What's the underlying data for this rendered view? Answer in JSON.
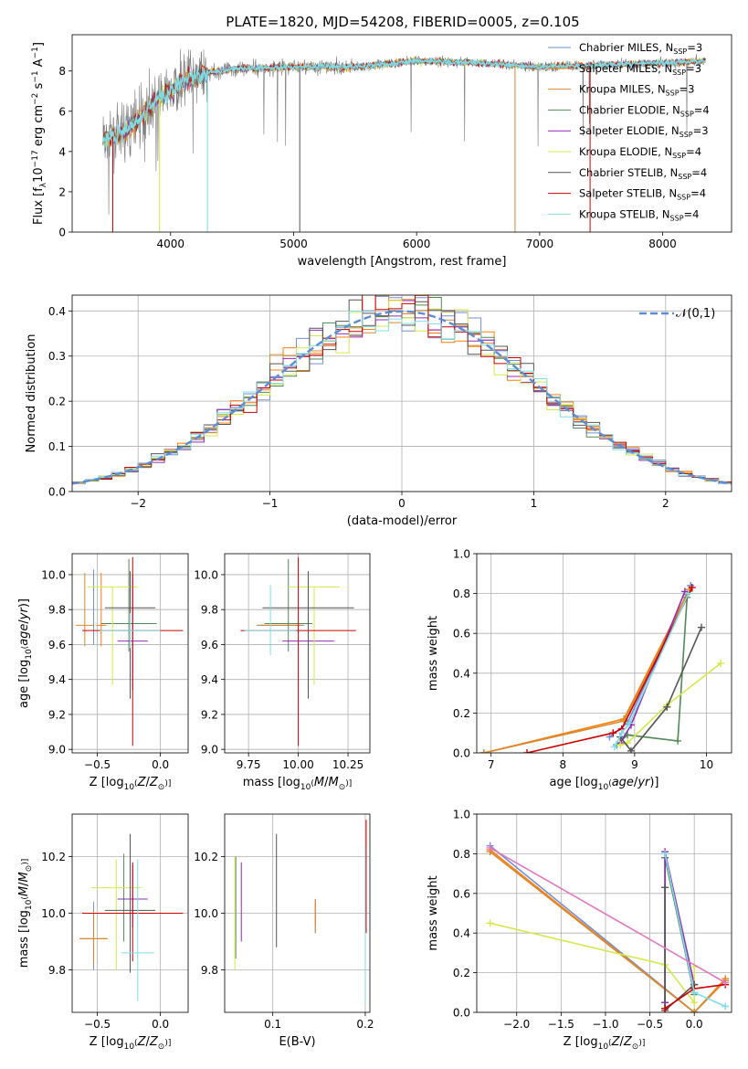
{
  "title": "PLATE=1820, MJD=54208, FIBERID=0005, z=0.105",
  "colors": {
    "Chabrier MILES": "#6f8fd6",
    "Salpeter MILES": "#ff7f0e",
    "Kroupa MILES": "#d6892f",
    "Chabrier ELODIE": "#4f8a55",
    "Salpeter ELODIE": "#9428b8",
    "Kroupa ELODIE": "#d6e84a",
    "Chabrier STELIB": "#555555",
    "Salpeter STELIB": "#cc0000",
    "Kroupa STELIB": "#7fdde8",
    "gauss": "#5b8dd6"
  },
  "chart_data": [
    {
      "type": "line",
      "name": "spectrum",
      "xlabel": "wavelength [Angstrom, rest frame]",
      "ylabel": "Flux [f_λ 10^-17 erg cm^-2 s^-1 A^-1]",
      "xlim": [
        3200,
        8560
      ],
      "ylim": [
        0,
        9.8
      ],
      "xticks": [
        4000,
        5000,
        6000,
        7000,
        8000
      ],
      "yticks": [
        0,
        2,
        4,
        6,
        8
      ],
      "observed_x_range": [
        3450,
        8350
      ],
      "legend_loc": "right",
      "legend": [
        {
          "label": "Chabrier MILES, N_SSP=3",
          "color": "#6f8fd6"
        },
        {
          "label": "Salpeter MILES, N_SSP=3",
          "color": "#ff7f0e"
        },
        {
          "label": "Kroupa MILES, N_SSP=3",
          "color": "#d6892f"
        },
        {
          "label": "Chabrier ELODIE, N_SSP=4",
          "color": "#4f8a55"
        },
        {
          "label": "Salpeter ELODIE, N_SSP=3",
          "color": "#9428b8"
        },
        {
          "label": "Kroupa ELODIE, N_SSP=4",
          "color": "#d6e84a"
        },
        {
          "label": "Chabrier STELIB, N_SSP=4",
          "color": "#555555"
        },
        {
          "label": "Salpeter STELIB, N_SSP=4",
          "color": "#cc0000"
        },
        {
          "label": "Kroupa STELIB, N_SSP=4",
          "color": "#7fdde8"
        }
      ],
      "continuum": [
        [
          3450,
          4.6
        ],
        [
          3600,
          4.9
        ],
        [
          3700,
          5.3
        ],
        [
          3800,
          6.0
        ],
        [
          3900,
          6.6
        ],
        [
          4000,
          7.0
        ],
        [
          4100,
          7.5
        ],
        [
          4300,
          7.9
        ],
        [
          4500,
          8.1
        ],
        [
          5000,
          8.2
        ],
        [
          5500,
          8.2
        ],
        [
          6000,
          8.5
        ],
        [
          6500,
          8.4
        ],
        [
          7000,
          8.2
        ],
        [
          7500,
          8.3
        ],
        [
          8000,
          8.4
        ],
        [
          8350,
          8.5
        ]
      ],
      "absorption_lines": [
        {
          "x": 3530,
          "depth": 4.8,
          "color": "#cc0000"
        },
        {
          "x": 3910,
          "depth": 6.2,
          "color": "#d6e84a"
        },
        {
          "x": 4300,
          "depth": 8.0,
          "color": "#7fdde8"
        },
        {
          "x": 5050,
          "depth": 8.3,
          "color": "#555555"
        },
        {
          "x": 6800,
          "depth": 8.3,
          "color": "#d6892f"
        },
        {
          "x": 7410,
          "depth": 8.4,
          "color": "#cc0000"
        }
      ]
    },
    {
      "type": "histogram",
      "name": "residuals",
      "xlabel": "(data-model)/error",
      "ylabel": "Normed distribution",
      "xlim": [
        -2.5,
        2.5
      ],
      "ylim": [
        0,
        0.435
      ],
      "xticks": [
        -2,
        -1,
        0,
        1,
        2
      ],
      "yticks": [
        0.0,
        0.1,
        0.2,
        0.3,
        0.4
      ],
      "bin_width": 0.1,
      "grid": true,
      "legend_loc": "top-right",
      "legend_label": "𝒩(0,1)",
      "reference_curve": "normal pdf, mean 0, std 1"
    },
    {
      "type": "scatter",
      "name": "age-vs-Z",
      "xlabel": "Z [log10(Z/Z⊙)]",
      "ylabel": "age  [log10(age/yr)]",
      "xlim": [
        -0.7,
        0.22
      ],
      "ylim": [
        8.98,
        10.12
      ],
      "xticks": [
        -0.5,
        0.0
      ],
      "yticks": [
        9.0,
        9.2,
        9.4,
        9.6,
        9.8,
        10.0
      ],
      "grid": true,
      "points": [
        {
          "model": "Chabrier MILES",
          "x": -0.53,
          "xerr": 0.0,
          "y": 9.71,
          "yerr_lo": 0.11,
          "yerr_hi": 0.32
        },
        {
          "model": "Salpeter MILES",
          "x": -0.47,
          "xerr": 0.04,
          "y": 9.71,
          "yerr_lo": 0.12,
          "yerr_hi": 0.3
        },
        {
          "model": "Kroupa MILES",
          "x": -0.6,
          "xerr": 0.07,
          "y": 9.71,
          "yerr_lo": 0.12,
          "yerr_hi": 0.3
        },
        {
          "model": "Chabrier ELODIE",
          "x": -0.25,
          "xerr": 0.22,
          "y": 9.72,
          "yerr_lo": 0.16,
          "yerr_hi": 0.37
        },
        {
          "model": "Salpeter ELODIE",
          "x": -0.22,
          "xerr": 0.12,
          "y": 9.62,
          "yerr_lo": 0.28,
          "yerr_hi": 0.38
        },
        {
          "model": "Kroupa ELODIE",
          "x": -0.38,
          "xerr": 0.2,
          "y": 9.93,
          "yerr_lo": 0.56,
          "yerr_hi": 0.0
        },
        {
          "model": "Chabrier STELIB",
          "x": -0.24,
          "xerr": 0.2,
          "y": 9.81,
          "yerr_lo": 0.52,
          "yerr_hi": 0.21
        },
        {
          "model": "Salpeter STELIB",
          "x": -0.22,
          "xerr": 0.4,
          "y": 9.68,
          "yerr_lo": 0.66,
          "yerr_hi": 0.42
        },
        {
          "model": "Kroupa STELIB",
          "x": -0.24,
          "xerr": 0.24,
          "y": 9.68,
          "yerr_lo": 0.1,
          "yerr_hi": 0.1
        }
      ]
    },
    {
      "type": "scatter",
      "name": "age-vs-mass",
      "xlabel": "mass [log10(M/M⊙)]",
      "ylabel": "",
      "xlim": [
        9.63,
        10.36
      ],
      "ylim": [
        8.98,
        10.12
      ],
      "xticks": [
        9.75,
        10.0,
        10.25
      ],
      "yticks": [
        9.0,
        9.2,
        9.4,
        9.6,
        9.8,
        10.0
      ],
      "grid": true,
      "points": [
        {
          "model": "Chabrier MILES",
          "x": 9.91,
          "xerr": 0.12,
          "y": 9.71,
          "yerr_lo": 0.0,
          "yerr_hi": 0.0
        },
        {
          "model": "Salpeter MILES",
          "x": 9.91,
          "xerr": 0.11,
          "y": 9.71,
          "yerr_lo": 0.0,
          "yerr_hi": 0.0
        },
        {
          "model": "Kroupa MILES",
          "x": 9.91,
          "xerr": 0.11,
          "y": 9.71,
          "yerr_lo": 0.0,
          "yerr_hi": 0.0
        },
        {
          "model": "Chabrier ELODIE",
          "x": 9.95,
          "xerr": 0.12,
          "y": 9.72,
          "yerr_lo": 0.16,
          "yerr_hi": 0.37
        },
        {
          "model": "Salpeter ELODIE",
          "x": 10.05,
          "xerr": 0.13,
          "y": 9.62,
          "yerr_lo": 0.28,
          "yerr_hi": 0.38
        },
        {
          "model": "Kroupa ELODIE",
          "x": 10.08,
          "xerr": 0.13,
          "y": 9.93,
          "yerr_lo": 0.56,
          "yerr_hi": 0.0
        },
        {
          "model": "Chabrier STELIB",
          "x": 10.05,
          "xerr": 0.23,
          "y": 9.81,
          "yerr_lo": 0.52,
          "yerr_hi": 0.21
        },
        {
          "model": "Salpeter STELIB",
          "x": 10.0,
          "xerr": 0.29,
          "y": 9.68,
          "yerr_lo": 0.66,
          "yerr_hi": 0.42
        },
        {
          "model": "Kroupa STELIB",
          "x": 9.86,
          "xerr": 0.13,
          "y": 9.68,
          "yerr_lo": 0.14,
          "yerr_hi": 0.26
        }
      ]
    },
    {
      "type": "line",
      "name": "mass-weight-vs-age",
      "xlabel": "age  [log10(age/yr)]",
      "ylabel": "mass weight",
      "xlim": [
        6.8,
        10.35
      ],
      "ylim": [
        0,
        1.0
      ],
      "xticks": [
        7,
        8,
        9,
        10
      ],
      "yticks": [
        0.0,
        0.2,
        0.4,
        0.6,
        0.8,
        1.0
      ],
      "grid": true,
      "series": [
        {
          "model": "Chabrier MILES",
          "x": [
            8.65,
            8.9,
            9.78
          ],
          "y": [
            0.08,
            0.15,
            0.84
          ]
        },
        {
          "model": "Salpeter MILES",
          "x": [
            6.9,
            8.85,
            9.76
          ],
          "y": [
            0.0,
            0.17,
            0.82
          ]
        },
        {
          "model": "Kroupa MILES",
          "x": [
            6.9,
            8.85,
            9.76
          ],
          "y": [
            0.0,
            0.16,
            0.81
          ]
        },
        {
          "model": "Chabrier ELODIE",
          "x": [
            8.75,
            8.9,
            9.6,
            9.73
          ],
          "y": [
            0.04,
            0.09,
            0.06,
            0.78
          ]
        },
        {
          "model": "Salpeter ELODIE",
          "x": [
            8.8,
            8.95,
            9.7
          ],
          "y": [
            0.05,
            0.14,
            0.81
          ]
        },
        {
          "model": "Kroupa ELODIE",
          "x": [
            8.8,
            8.9,
            9.45,
            10.2
          ],
          "y": [
            0.04,
            0.05,
            0.24,
            0.45
          ]
        },
        {
          "model": "Chabrier STELIB",
          "x": [
            8.8,
            8.95,
            9.45,
            9.93
          ],
          "y": [
            0.08,
            0.01,
            0.23,
            0.63
          ]
        },
        {
          "model": "Salpeter STELIB",
          "x": [
            7.5,
            8.7,
            8.82,
            9.8
          ],
          "y": [
            0.0,
            0.1,
            0.12,
            0.83
          ]
        },
        {
          "model": "Kroupa STELIB",
          "x": [
            8.72,
            8.82,
            8.93,
            9.75
          ],
          "y": [
            0.03,
            0.1,
            0.15,
            0.8
          ]
        }
      ]
    },
    {
      "type": "scatter",
      "name": "mass-vs-Z",
      "xlabel": "Z [log10(Z/Z⊙)]",
      "ylabel": "mass [log10(M/M⊙)]",
      "xlim": [
        -0.7,
        0.22
      ],
      "ylim": [
        9.65,
        10.35
      ],
      "xticks": [
        -0.5,
        0.0
      ],
      "yticks": [
        9.8,
        10.0,
        10.2
      ],
      "grid": true,
      "points": [
        {
          "model": "Chabrier MILES",
          "x": -0.53,
          "xerr": 0.11,
          "y": 9.91,
          "yerr_lo": 0.11,
          "yerr_hi": 0.13
        },
        {
          "model": "Salpeter MILES",
          "x": -0.53,
          "xerr": 0.11,
          "y": 9.91,
          "yerr_lo": 0.09,
          "yerr_hi": 0.1
        },
        {
          "model": "Kroupa MILES",
          "x": -0.53,
          "xerr": 0.11,
          "y": 9.91,
          "yerr_lo": 0.09,
          "yerr_hi": 0.1
        },
        {
          "model": "Chabrier ELODIE",
          "x": -0.29,
          "xerr": 0.15,
          "y": 10.0,
          "yerr_lo": 0.1,
          "yerr_hi": 0.21
        },
        {
          "model": "Salpeter ELODIE",
          "x": -0.22,
          "xerr": 0.12,
          "y": 10.05,
          "yerr_lo": 0.1,
          "yerr_hi": 0.12
        },
        {
          "model": "Kroupa ELODIE",
          "x": -0.35,
          "xerr": 0.2,
          "y": 10.09,
          "yerr_lo": 0.29,
          "yerr_hi": 0.1
        },
        {
          "model": "Chabrier STELIB",
          "x": -0.24,
          "xerr": 0.2,
          "y": 10.01,
          "yerr_lo": 0.22,
          "yerr_hi": 0.27
        },
        {
          "model": "Salpeter STELIB",
          "x": -0.22,
          "xerr": 0.4,
          "y": 10.0,
          "yerr_lo": 0.17,
          "yerr_hi": 0.18
        },
        {
          "model": "Kroupa STELIB",
          "x": -0.18,
          "xerr": 0.13,
          "y": 9.86,
          "yerr_lo": 0.17,
          "yerr_hi": 0.33
        }
      ]
    },
    {
      "type": "scatter",
      "name": "mass-vs-EBV",
      "xlabel": "E(B-V)",
      "ylabel": "",
      "xlim": [
        0.048,
        0.205
      ],
      "ylim": [
        9.65,
        10.35
      ],
      "xticks": [
        0.1,
        0.2
      ],
      "yticks": [
        9.8,
        10.0,
        10.2
      ],
      "grid": true,
      "points": [
        {
          "model": "Chabrier MILES",
          "x": 0.146,
          "y": 9.99,
          "yerr_lo": 0.06,
          "yerr_hi": 0.06
        },
        {
          "model": "Salpeter MILES",
          "x": 0.146,
          "y": 10.0,
          "yerr_lo": 0.04,
          "yerr_hi": 0.04
        },
        {
          "model": "Kroupa MILES",
          "x": 0.146,
          "y": 9.99,
          "yerr_lo": 0.06,
          "yerr_hi": 0.06
        },
        {
          "model": "Chabrier ELODIE",
          "x": 0.06,
          "y": 10.02,
          "yerr_lo": 0.18,
          "yerr_hi": 0.18
        },
        {
          "model": "Salpeter ELODIE",
          "x": 0.066,
          "y": 10.04,
          "yerr_lo": 0.14,
          "yerr_hi": 0.14
        },
        {
          "model": "Kroupa ELODIE",
          "x": 0.059,
          "y": 10.0,
          "yerr_lo": 0.2,
          "yerr_hi": 0.2
        },
        {
          "model": "Chabrier STELIB",
          "x": 0.104,
          "y": 10.08,
          "yerr_lo": 0.2,
          "yerr_hi": 0.2
        },
        {
          "model": "Salpeter STELIB",
          "x": 0.201,
          "y": 10.13,
          "yerr_lo": 0.2,
          "yerr_hi": 0.2
        },
        {
          "model": "Kroupa STELIB",
          "x": 0.2,
          "y": 9.96,
          "yerr_lo": 0.28,
          "yerr_hi": 0.28
        }
      ]
    },
    {
      "type": "line",
      "name": "mass-weight-vs-Z",
      "xlabel": "Z [log10(Z/Z⊙)]",
      "ylabel": "mass weight",
      "xlim": [
        -2.45,
        0.42
      ],
      "ylim": [
        0,
        1.0
      ],
      "xticks": [
        -2.0,
        -1.5,
        -1.0,
        -0.5,
        0.0
      ],
      "yticks": [
        0.0,
        0.2,
        0.4,
        0.6,
        0.8,
        1.0
      ],
      "grid": true,
      "series": [
        {
          "model": "Chabrier MILES",
          "x": [
            -2.3,
            0.0,
            0.35
          ],
          "y": [
            0.84,
            0.0,
            0.16
          ]
        },
        {
          "model": "Salpeter MILES",
          "x": [
            -2.3,
            0.0,
            0.35
          ],
          "y": [
            0.82,
            0.0,
            0.17
          ]
        },
        {
          "model": "Kroupa MILES",
          "x": [
            -2.3,
            0.0,
            0.35
          ],
          "y": [
            0.81,
            0.0,
            0.16
          ]
        },
        {
          "model": "Chabrier ELODIE",
          "x": [
            -0.33,
            -0.33,
            0.0
          ],
          "y": [
            0.05,
            0.78,
            0.09
          ]
        },
        {
          "model": "Salpeter ELODIE",
          "x": [
            -0.33,
            -0.33,
            0.0
          ],
          "y": [
            0.05,
            0.81,
            0.14
          ]
        },
        {
          "model": "Kroupa ELODIE",
          "x": [
            -2.3,
            -0.33,
            0.0,
            0.0
          ],
          "y": [
            0.45,
            0.24,
            0.05,
            0.23
          ]
        },
        {
          "model": "Chabrier STELIB",
          "x": [
            -0.33,
            -0.33,
            0.0
          ],
          "y": [
            0.63,
            0.01,
            0.14
          ]
        },
        {
          "model": "Salpeter STELIB",
          "x": [
            -0.33,
            0.0,
            0.35
          ],
          "y": [
            0.02,
            0.12,
            0.14
          ]
        },
        {
          "model": "Kroupa STELIB",
          "x": [
            -0.33,
            0.0,
            0.35
          ],
          "y": [
            0.8,
            0.1,
            0.03
          ]
        },
        {
          "model": "Salpeter MILES pink",
          "x": [
            -2.3,
            0.35
          ],
          "y": [
            0.83,
            0.15
          ]
        }
      ]
    }
  ]
}
